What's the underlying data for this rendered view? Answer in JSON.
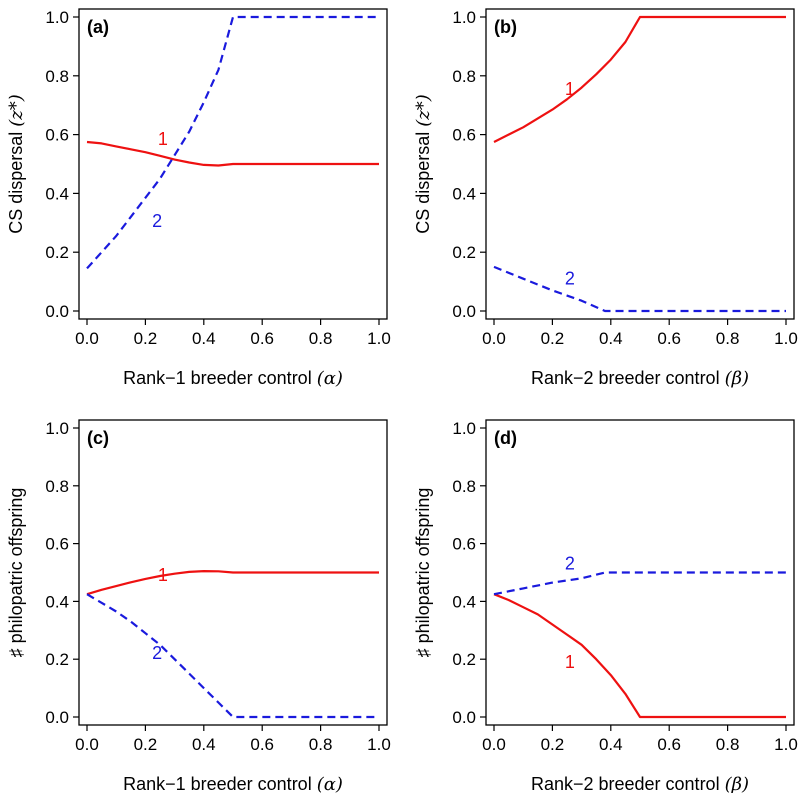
{
  "colors": {
    "rank1": "#ee1111",
    "rank2": "#1a1add",
    "axes": "#000000"
  },
  "chart_data": [
    {
      "type": "line",
      "panel": "(a)",
      "xlabel_text": "Rank−1 breeder control ",
      "xlabel_symbol": "(α)",
      "ylabel_text": "CS dispersal ",
      "ylabel_symbol": "(z*)",
      "xlim": [
        0,
        1
      ],
      "ylim": [
        0,
        1
      ],
      "xticks": [
        "0.0",
        "0.2",
        "0.4",
        "0.6",
        "0.8",
        "1.0"
      ],
      "yticks": [
        "0.0",
        "0.2",
        "0.4",
        "0.6",
        "0.8",
        "1.0"
      ],
      "series": [
        {
          "name": "1",
          "style": "solid",
          "color": "#ee1111",
          "x": [
            0,
            0.05,
            0.1,
            0.15,
            0.2,
            0.25,
            0.3,
            0.35,
            0.4,
            0.45,
            0.5,
            0.6,
            0.7,
            0.8,
            0.9,
            1.0
          ],
          "y": [
            0.575,
            0.57,
            0.56,
            0.55,
            0.54,
            0.528,
            0.515,
            0.505,
            0.497,
            0.495,
            0.5,
            0.5,
            0.5,
            0.5,
            0.5,
            0.5
          ],
          "label_at": [
            0.26,
            0.565
          ]
        },
        {
          "name": "2",
          "style": "dashed",
          "color": "#1a1add",
          "x": [
            0,
            0.05,
            0.1,
            0.15,
            0.2,
            0.25,
            0.3,
            0.35,
            0.4,
            0.45,
            0.5,
            0.6,
            0.7,
            0.8,
            0.9,
            1.0
          ],
          "y": [
            0.145,
            0.2,
            0.255,
            0.32,
            0.385,
            0.45,
            0.53,
            0.61,
            0.71,
            0.82,
            1.0,
            1.0,
            1.0,
            1.0,
            1.0,
            1.0
          ],
          "label_at": [
            0.24,
            0.285
          ]
        }
      ]
    },
    {
      "type": "line",
      "panel": "(b)",
      "xlabel_text": "Rank−2 breeder control ",
      "xlabel_symbol": "(β)",
      "ylabel_text": "CS dispersal ",
      "ylabel_symbol": "(z*)",
      "xlim": [
        0,
        1
      ],
      "ylim": [
        0,
        1
      ],
      "xticks": [
        "0.0",
        "0.2",
        "0.4",
        "0.6",
        "0.8",
        "1.0"
      ],
      "yticks": [
        "0.0",
        "0.2",
        "0.4",
        "0.6",
        "0.8",
        "1.0"
      ],
      "series": [
        {
          "name": "1",
          "style": "solid",
          "color": "#ee1111",
          "x": [
            0,
            0.05,
            0.1,
            0.15,
            0.2,
            0.25,
            0.3,
            0.35,
            0.4,
            0.45,
            0.5,
            0.6,
            0.7,
            0.8,
            0.9,
            1.0
          ],
          "y": [
            0.575,
            0.6,
            0.625,
            0.655,
            0.685,
            0.72,
            0.76,
            0.805,
            0.855,
            0.915,
            1.0,
            1.0,
            1.0,
            1.0,
            1.0,
            1.0
          ],
          "label_at": [
            0.26,
            0.735
          ]
        },
        {
          "name": "2",
          "style": "dashed",
          "color": "#1a1add",
          "x": [
            0,
            0.1,
            0.2,
            0.3,
            0.38,
            0.5,
            0.6,
            0.7,
            0.8,
            0.9,
            1.0
          ],
          "y": [
            0.15,
            0.11,
            0.07,
            0.035,
            0.0,
            0.0,
            0.0,
            0.0,
            0.0,
            0.0,
            0.0
          ],
          "label_at": [
            0.26,
            0.09
          ]
        }
      ]
    },
    {
      "type": "line",
      "panel": "(c)",
      "xlabel_text": "Rank−1 breeder control ",
      "xlabel_symbol": "(α)",
      "ylabel_text": "♯ philopatric offspring",
      "ylabel_symbol": "",
      "xlim": [
        0,
        1
      ],
      "ylim": [
        0,
        1
      ],
      "xticks": [
        "0.0",
        "0.2",
        "0.4",
        "0.6",
        "0.8",
        "1.0"
      ],
      "yticks": [
        "0.0",
        "0.2",
        "0.4",
        "0.6",
        "0.8",
        "1.0"
      ],
      "series": [
        {
          "name": "1",
          "style": "solid",
          "color": "#ee1111",
          "x": [
            0,
            0.05,
            0.1,
            0.15,
            0.2,
            0.25,
            0.3,
            0.35,
            0.4,
            0.45,
            0.5,
            0.6,
            0.7,
            0.8,
            0.9,
            1.0
          ],
          "y": [
            0.425,
            0.44,
            0.453,
            0.466,
            0.478,
            0.488,
            0.496,
            0.502,
            0.505,
            0.504,
            0.5,
            0.5,
            0.5,
            0.5,
            0.5,
            0.5
          ],
          "label_at": [
            0.26,
            0.47
          ]
        },
        {
          "name": "2",
          "style": "dashed",
          "color": "#1a1add",
          "x": [
            0,
            0.05,
            0.1,
            0.15,
            0.2,
            0.25,
            0.3,
            0.35,
            0.4,
            0.45,
            0.5,
            0.6,
            0.7,
            0.8,
            0.9,
            1.0
          ],
          "y": [
            0.425,
            0.395,
            0.365,
            0.33,
            0.29,
            0.25,
            0.2,
            0.15,
            0.1,
            0.05,
            0.0,
            0.0,
            0.0,
            0.0,
            0.0,
            0.0
          ],
          "label_at": [
            0.24,
            0.2
          ]
        }
      ]
    },
    {
      "type": "line",
      "panel": "(d)",
      "xlabel_text": "Rank−2 breeder control ",
      "xlabel_symbol": "(β)",
      "ylabel_text": "♯ philopatric offspring",
      "ylabel_symbol": "",
      "xlim": [
        0,
        1
      ],
      "ylim": [
        0,
        1
      ],
      "xticks": [
        "0.0",
        "0.2",
        "0.4",
        "0.6",
        "0.8",
        "1.0"
      ],
      "yticks": [
        "0.0",
        "0.2",
        "0.4",
        "0.6",
        "0.8",
        "1.0"
      ],
      "series": [
        {
          "name": "1",
          "style": "solid",
          "color": "#ee1111",
          "x": [
            0,
            0.05,
            0.1,
            0.15,
            0.2,
            0.25,
            0.3,
            0.35,
            0.4,
            0.45,
            0.5,
            0.6,
            0.7,
            0.8,
            0.9,
            1.0
          ],
          "y": [
            0.425,
            0.405,
            0.38,
            0.355,
            0.32,
            0.285,
            0.25,
            0.2,
            0.145,
            0.08,
            0.0,
            0.0,
            0.0,
            0.0,
            0.0,
            0.0
          ],
          "label_at": [
            0.26,
            0.17
          ]
        },
        {
          "name": "2",
          "style": "dashed",
          "color": "#1a1add",
          "x": [
            0,
            0.1,
            0.2,
            0.3,
            0.38,
            0.5,
            0.6,
            0.7,
            0.8,
            0.9,
            1.0
          ],
          "y": [
            0.425,
            0.445,
            0.465,
            0.48,
            0.5,
            0.5,
            0.5,
            0.5,
            0.5,
            0.5,
            0.5
          ],
          "label_at": [
            0.26,
            0.51
          ]
        }
      ]
    }
  ]
}
